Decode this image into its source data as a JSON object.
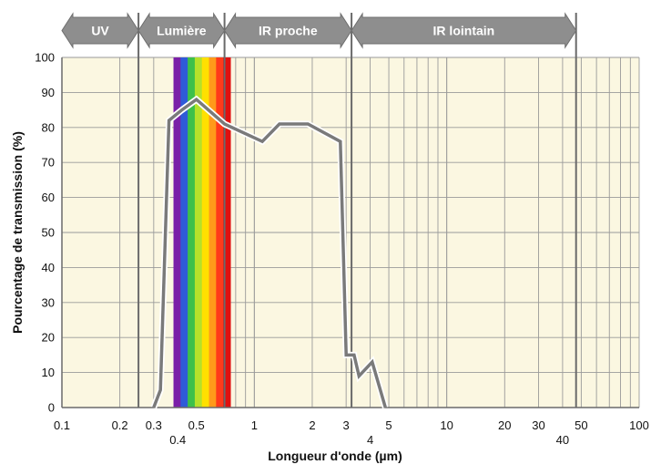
{
  "chart_data": {
    "type": "line",
    "xscale": "log",
    "xlim": [
      0.1,
      100
    ],
    "ylim": [
      0,
      100
    ],
    "xlabel": "Longueur d'onde (µm)",
    "ylabel": "Pourcentage de transmission (%)",
    "grid": true,
    "x_tick_labels": [
      {
        "value": 0.1,
        "label": "0.1"
      },
      {
        "value": 0.2,
        "label": "0.2"
      },
      {
        "value": 0.3,
        "label": "0.3"
      },
      {
        "value": 0.4,
        "label": "0.4"
      },
      {
        "value": 0.5,
        "label": "0.5"
      },
      {
        "value": 1,
        "label": "1"
      },
      {
        "value": 2,
        "label": "2"
      },
      {
        "value": 3,
        "label": "3"
      },
      {
        "value": 4,
        "label": "4"
      },
      {
        "value": 5,
        "label": "5"
      },
      {
        "value": 10,
        "label": "10"
      },
      {
        "value": 20,
        "label": "20"
      },
      {
        "value": 30,
        "label": "30"
      },
      {
        "value": 40,
        "label": "40"
      },
      {
        "value": 50,
        "label": "50"
      },
      {
        "value": 100,
        "label": "100"
      }
    ],
    "y_ticks": [
      0,
      10,
      20,
      30,
      40,
      50,
      60,
      70,
      80,
      90,
      100
    ],
    "bands": [
      {
        "label": "UV",
        "from": 0.1,
        "to": 0.25
      },
      {
        "label": "Lumière",
        "from": 0.25,
        "to": 0.7
      },
      {
        "label": "IR proche",
        "from": 0.7,
        "to": 3.2
      },
      {
        "label": "IR lointain",
        "from": 3.2,
        "to": 47
      }
    ],
    "band_boundaries": [
      0.25,
      0.7,
      3.2,
      47
    ],
    "visible_spectrum": {
      "from": 0.38,
      "to": 0.75,
      "colors": [
        "#7a1fa8",
        "#2f5bd8",
        "#3cc04a",
        "#b5e12a",
        "#ffe000",
        "#ff9a1a",
        "#ff3a1a",
        "#e01010"
      ]
    },
    "series": [
      {
        "color": "#7a7a7a",
        "points": [
          [
            0.3,
            0
          ],
          [
            0.325,
            5
          ],
          [
            0.36,
            82
          ],
          [
            0.42,
            85
          ],
          [
            0.5,
            88
          ],
          [
            0.7,
            81
          ],
          [
            1.1,
            76
          ],
          [
            1.35,
            81
          ],
          [
            1.9,
            81
          ],
          [
            2.8,
            76
          ],
          [
            3.0,
            15
          ],
          [
            3.3,
            15
          ],
          [
            3.5,
            9
          ],
          [
            4.1,
            13
          ],
          [
            4.8,
            0
          ]
        ]
      }
    ]
  }
}
